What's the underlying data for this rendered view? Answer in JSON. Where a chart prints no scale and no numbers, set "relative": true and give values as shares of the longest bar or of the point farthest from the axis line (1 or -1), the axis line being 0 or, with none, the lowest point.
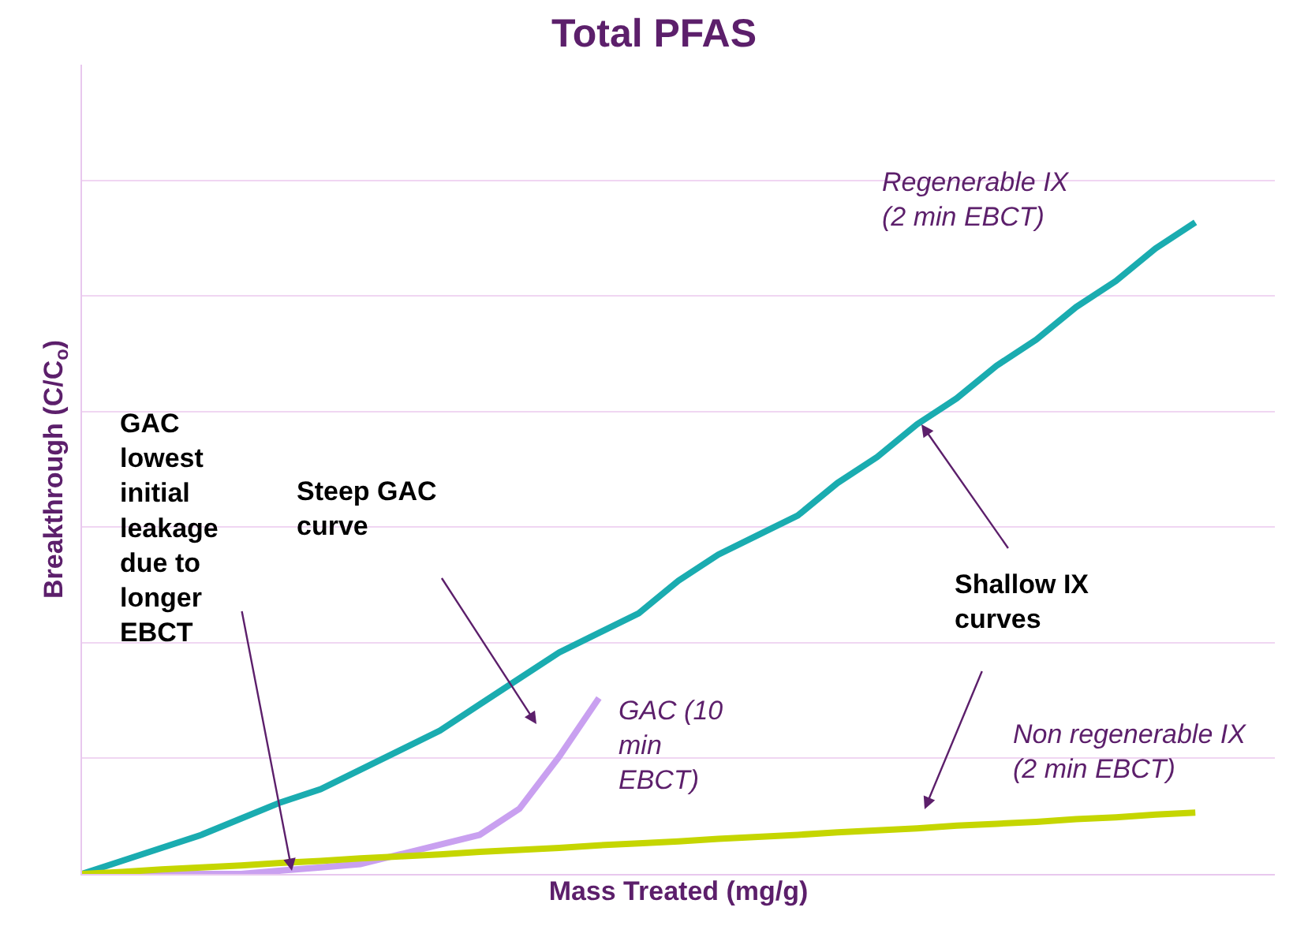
{
  "chart_data": {
    "type": "line",
    "title": "Total PFAS",
    "xlabel": "Mass Treated (mg/g)",
    "ylabel": "Breakthrough (C/C$_{o}$)",
    "relative": true,
    "grid": "y",
    "legend": false,
    "marker": "none",
    "line_style": "solid",
    "categories": [
      null,
      null,
      null,
      null,
      null,
      null,
      null,
      null,
      null,
      null,
      null,
      null,
      null,
      null,
      null,
      null,
      null,
      null,
      null,
      null,
      null,
      null,
      null,
      null,
      null,
      null,
      null,
      null,
      null
    ],
    "series": [
      {
        "name": "Regenerable IX (2 min EBCT)",
        "color": "#1aacb0",
        "values": [
          0,
          0.02,
          0.04,
          0.06,
          0.085,
          0.11,
          0.13,
          0.16,
          0.19,
          0.22,
          0.26,
          0.3,
          0.34,
          0.37,
          0.4,
          0.45,
          0.49,
          0.52,
          0.55,
          0.6,
          0.64,
          0.69,
          0.73,
          0.78,
          0.82,
          0.87,
          0.91,
          0.96,
          1
        ]
      },
      {
        "name": "GAC (10 min EBCT)",
        "color": "#c9a0f0",
        "values": [
          0,
          0,
          0,
          0,
          0,
          0.005,
          0.01,
          0.015,
          0.03,
          0.045,
          0.06,
          0.1,
          0.18,
          0.27,
          null,
          null,
          null,
          null,
          null,
          null,
          null,
          null,
          null,
          null,
          null,
          null,
          null,
          null,
          null
        ]
      },
      {
        "name": "Non regenerable IX (2 min EBCT)",
        "color": "#c5d600",
        "values": [
          0,
          0.003,
          0.007,
          0.01,
          0.013,
          0.017,
          0.02,
          0.024,
          0.027,
          0.03,
          0.034,
          0.037,
          0.04,
          0.044,
          0.047,
          0.05,
          0.054,
          0.057,
          0.06,
          0.064,
          0.067,
          0.07,
          0.074,
          0.077,
          0.08,
          0.084,
          0.087,
          0.091,
          0.094
        ]
      }
    ],
    "annotations": [
      "GAC lowest initial leakage due to longer EBCT",
      "Steep GAC curve",
      "Shallow IX curves"
    ]
  }
}
